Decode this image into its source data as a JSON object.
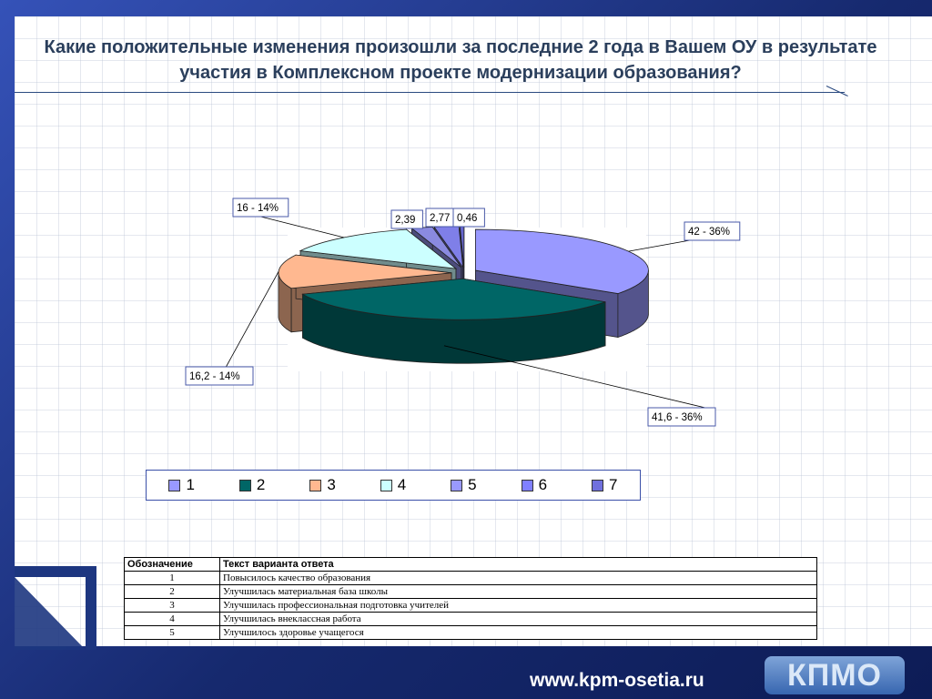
{
  "slide": {
    "title": "Какие положительные изменения произошли за последние 2 года в Вашем ОУ в результате участия  в Комплексном проекте модернизации образования?"
  },
  "chart_data": {
    "type": "pie",
    "title": "",
    "slices": [
      {
        "legend": "1",
        "value": 42,
        "label": "42 - 36%",
        "color": "#9999ff"
      },
      {
        "legend": "2",
        "value": 41.6,
        "label": "41,6 - 36%",
        "color": "#006666"
      },
      {
        "legend": "3",
        "value": 16.2,
        "label": "16,2 - 14%",
        "color": "#ffb890"
      },
      {
        "legend": "4",
        "value": 16,
        "label": "16 - 14%",
        "color": "#ccffff"
      },
      {
        "legend": "5",
        "value": 2.39,
        "label": "2,39",
        "color": "#8a8ae0"
      },
      {
        "legend": "6",
        "value": 2.77,
        "label": "2,77",
        "color": "#7f7fe8"
      },
      {
        "legend": "7",
        "value": 0.46,
        "label": "0,46",
        "color": "#6666cc"
      }
    ],
    "legend_position": "bottom"
  },
  "legend": {
    "items": [
      {
        "label": "1",
        "color": "#9999ff"
      },
      {
        "label": "2",
        "color": "#006666"
      },
      {
        "label": "3",
        "color": "#ffb890"
      },
      {
        "label": "4",
        "color": "#ccffff"
      },
      {
        "label": "5",
        "color": "#9999ff"
      },
      {
        "label": "6",
        "color": "#8080ff"
      },
      {
        "label": "7",
        "color": "#7070dd"
      }
    ]
  },
  "answers_table": {
    "headers": [
      "Обозначение",
      "Текст варианта ответа"
    ],
    "rows": [
      [
        "1",
        "Повысилось качество образования"
      ],
      [
        "2",
        "Улучшилась материальная база школы"
      ],
      [
        "3",
        "Улучшилась профессиональная подготовка учителей"
      ],
      [
        "4",
        "Улучшилась внеклассная работа"
      ],
      [
        "5",
        "Улучшилось здоровье учащегося"
      ]
    ]
  },
  "footer": {
    "url": "www.kpm-osetia.ru",
    "logo_text": "КПМО"
  }
}
